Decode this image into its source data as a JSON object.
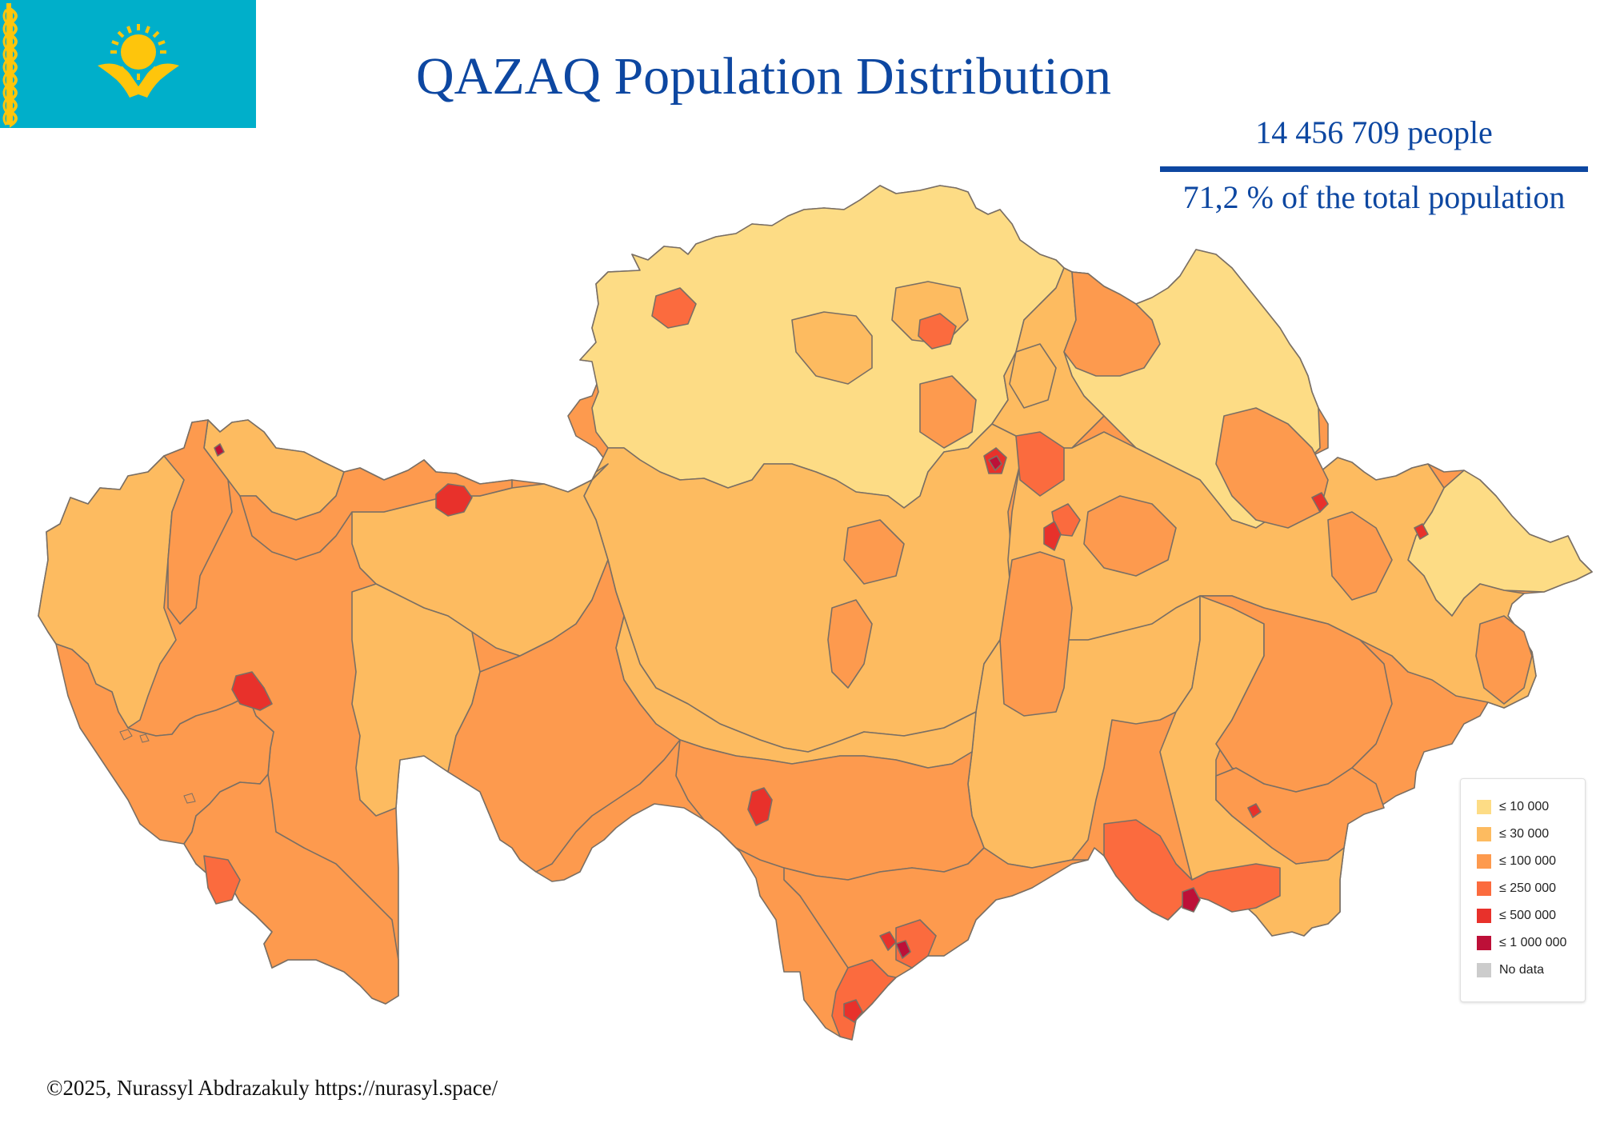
{
  "title": "QAZAQ Population Distribution",
  "stats": {
    "people": "14 456 709 people",
    "share": "71,2 % of the total population"
  },
  "credit": "©2025, Nurassyl Abdrazakuly https://nurasyl.space/",
  "flag": {
    "background": "#00afca",
    "emblem_color": "#fec50c",
    "ornament_color": "#fec50c"
  },
  "legend": {
    "items": [
      {
        "label": "≤ 10 000",
        "color": "#fddc85"
      },
      {
        "label": "≤ 30 000",
        "color": "#fdbb60"
      },
      {
        "label": "≤ 100 000",
        "color": "#fd9a4e"
      },
      {
        "label": "≤ 250 000",
        "color": "#fb6b3e"
      },
      {
        "label": "≤ 500 000",
        "color": "#e8312b"
      },
      {
        "label": "≤ 1 000 000",
        "color": "#bd1038"
      },
      {
        "label": "No data",
        "color": "#cccccc"
      }
    ]
  },
  "map": {
    "border_color": "#7a6f64",
    "class_colors": {
      "c1": "#fddc85",
      "c2": "#fdbb60",
      "c3": "#fd9a4e",
      "c4": "#fb6b3e",
      "c5": "#e8312b",
      "c6": "#bd1038"
    }
  }
}
